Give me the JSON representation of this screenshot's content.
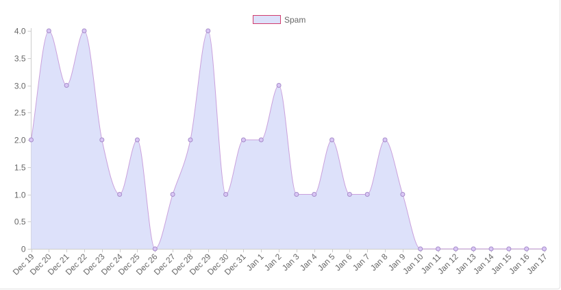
{
  "chart_data": {
    "type": "area",
    "categories": [
      "Dec 19",
      "Dec 20",
      "Dec 21",
      "Dec 22",
      "Dec 23",
      "Dec 24",
      "Dec 25",
      "Dec 26",
      "Dec 27",
      "Dec 28",
      "Dec 29",
      "Dec 30",
      "Dec 31",
      "Jan 1",
      "Jan 2",
      "Jan 3",
      "Jan 4",
      "Jan 5",
      "Jan 6",
      "Jan 7",
      "Jan 8",
      "Jan 9",
      "Jan 10",
      "Jan 11",
      "Jan 12",
      "Jan 13",
      "Jan 14",
      "Jan 15",
      "Jan 16",
      "Jan 17"
    ],
    "series": [
      {
        "name": "Spam",
        "values": [
          2,
          4,
          3,
          4,
          2,
          1,
          2,
          0,
          1,
          2,
          4,
          1,
          2,
          2,
          3,
          1,
          1,
          2,
          1,
          1,
          2,
          1,
          0,
          0,
          0,
          0,
          0,
          0,
          0,
          0
        ]
      }
    ],
    "ylim": [
      0,
      4
    ],
    "yticks": [
      "0",
      "0.5",
      "1.0",
      "1.5",
      "2.0",
      "2.5",
      "3.0",
      "3.5",
      "4.0"
    ],
    "legend": "top-center",
    "grid": false,
    "colors": {
      "fill": "#dde1fa",
      "line": "#c9a0dc",
      "point_fill": "#d9c6f5",
      "point_stroke": "#a58cc9",
      "legend_border": "#d23c6e",
      "axis": "#cccccc",
      "text": "#666666"
    }
  }
}
